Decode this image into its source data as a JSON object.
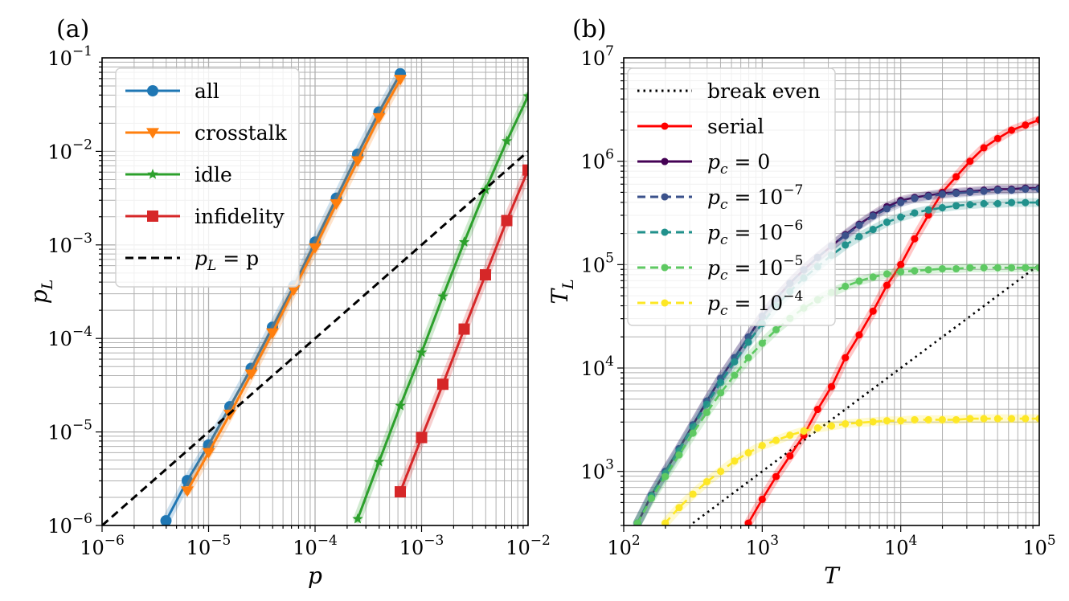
{
  "chart_data": [
    {
      "type": "line",
      "panel_label": "(a)",
      "xscale": "log",
      "yscale": "log",
      "xlim_exp": [
        -6,
        -2
      ],
      "ylim_exp": [
        -6,
        -1
      ],
      "xlabel": "p",
      "ylabel": "p",
      "ylabel_sub": "L",
      "x_tick_labels": [
        {
          "base": "10",
          "exp": "−6"
        },
        {
          "base": "10",
          "exp": "−5"
        },
        {
          "base": "10",
          "exp": "−4"
        },
        {
          "base": "10",
          "exp": "−3"
        },
        {
          "base": "10",
          "exp": "−2"
        }
      ],
      "y_tick_labels": [
        {
          "base": "10",
          "exp": "−6"
        },
        {
          "base": "10",
          "exp": "−5"
        },
        {
          "base": "10",
          "exp": "−4"
        },
        {
          "base": "10",
          "exp": "−3"
        },
        {
          "base": "10",
          "exp": "−2"
        },
        {
          "base": "10",
          "exp": "−1"
        }
      ],
      "grid": true,
      "legend_position": "top-left",
      "series": [
        {
          "name": "all",
          "color": "#1f77b4",
          "marker": "circle",
          "x_exp": [
            -5.4,
            -5.2,
            -5.0,
            -4.8,
            -4.6,
            -4.4,
            -4.2,
            -4.0,
            -3.8,
            -3.6,
            -3.4,
            -3.2
          ],
          "y_exp": [
            -5.95,
            -5.52,
            -5.14,
            -4.73,
            -4.32,
            -3.88,
            -3.44,
            -2.97,
            -2.5,
            -2.03,
            -1.58,
            -1.17
          ]
        },
        {
          "name": "crosstalk",
          "color": "#ff7f0e",
          "marker": "triangle-down",
          "x_exp": [
            -5.2,
            -5.0,
            -4.8,
            -4.6,
            -4.4,
            -4.2,
            -4.0,
            -3.8,
            -3.6,
            -3.4,
            -3.2
          ],
          "y_exp": [
            -5.63,
            -5.22,
            -4.81,
            -4.38,
            -3.94,
            -3.48,
            -3.03,
            -2.56,
            -2.1,
            -1.64,
            -1.23
          ]
        },
        {
          "name": "idle",
          "color": "#2ca02c",
          "marker": "star",
          "x_exp": [
            -3.6,
            -3.4,
            -3.2,
            -3.0,
            -2.8,
            -2.6,
            -2.4,
            -2.2,
            -2.0
          ],
          "y_exp": [
            -5.93,
            -5.32,
            -4.72,
            -4.15,
            -3.55,
            -2.97,
            -2.41,
            -1.89,
            -1.41
          ]
        },
        {
          "name": "infidelity",
          "color": "#d62728",
          "marker": "square",
          "x_exp": [
            -3.2,
            -3.0,
            -2.8,
            -2.6,
            -2.4,
            -2.2,
            -2.0
          ],
          "y_exp": [
            -5.64,
            -5.06,
            -4.49,
            -3.9,
            -3.32,
            -2.74,
            -2.2
          ]
        },
        {
          "name": "p_L = p",
          "color": "#000000",
          "dash": "dashed",
          "x_exp": [
            -6,
            -2
          ],
          "y_exp": [
            -6,
            -2
          ]
        }
      ],
      "legend": [
        {
          "text": "all"
        },
        {
          "text": "crosstalk"
        },
        {
          "text": "idle"
        },
        {
          "text": "infidelity"
        },
        {
          "lhs": "p",
          "lhs_sub": "L",
          "rhs": " = p"
        }
      ]
    },
    {
      "type": "line",
      "panel_label": "(b)",
      "xscale": "log",
      "yscale": "log",
      "xlim_exp": [
        2,
        5
      ],
      "ylim_exp": [
        2.477,
        7
      ],
      "xlabel": "T",
      "ylabel": "T",
      "ylabel_sub": "L",
      "x_tick_labels": [
        {
          "base": "10",
          "exp": "2"
        },
        {
          "base": "10",
          "exp": "3"
        },
        {
          "base": "10",
          "exp": "4"
        },
        {
          "base": "10",
          "exp": "5"
        }
      ],
      "y_tick_labels": [
        {
          "base": "10",
          "exp": "3"
        },
        {
          "base": "10",
          "exp": "4"
        },
        {
          "base": "10",
          "exp": "5"
        },
        {
          "base": "10",
          "exp": "6"
        },
        {
          "base": "10",
          "exp": "7"
        }
      ],
      "grid": true,
      "legend_position": "top-left",
      "series": [
        {
          "name": "break even",
          "color": "#000000",
          "dash": "dotted",
          "x_exp": [
            2.5,
            5.0
          ],
          "y_exp": [
            2.5,
            5.0
          ]
        },
        {
          "name": "serial",
          "color": "#ff0000",
          "marker": "circle",
          "x_exp": [
            2.9,
            3.0,
            3.1,
            3.2,
            3.3,
            3.4,
            3.5,
            3.6,
            3.7,
            3.8,
            3.9,
            4.0,
            4.1,
            4.2,
            4.3,
            4.4,
            4.5,
            4.6,
            4.7,
            4.8,
            4.9,
            5.0
          ],
          "y_exp": [
            2.5,
            2.73,
            2.95,
            3.15,
            3.35,
            3.6,
            3.82,
            4.1,
            4.32,
            4.55,
            4.8,
            5.0,
            5.25,
            5.48,
            5.7,
            5.85,
            6.0,
            6.13,
            6.22,
            6.3,
            6.35,
            6.4
          ]
        },
        {
          "name": "p_c = 0",
          "color": "#440154",
          "marker": "circle",
          "x_exp": [
            2.1,
            2.2,
            2.3,
            2.4,
            2.5,
            2.6,
            2.7,
            2.8,
            2.9,
            3.0,
            3.1,
            3.2,
            3.3,
            3.4,
            3.5,
            3.6,
            3.7,
            3.8,
            3.9,
            4.0,
            4.1,
            4.2,
            4.3,
            4.4,
            4.5,
            4.6,
            4.7,
            4.8,
            4.9,
            5.0
          ],
          "y_exp": [
            2.5,
            2.77,
            3.0,
            3.22,
            3.45,
            3.68,
            3.9,
            4.1,
            4.3,
            4.5,
            4.67,
            4.82,
            4.95,
            5.07,
            5.18,
            5.29,
            5.39,
            5.48,
            5.56,
            5.62,
            5.65,
            5.67,
            5.69,
            5.7,
            5.71,
            5.72,
            5.73,
            5.73,
            5.74,
            5.74
          ]
        },
        {
          "name": "p_c = 10^-7",
          "color": "#3b528b",
          "marker": "circle",
          "dash": "dashed",
          "x_exp": [
            2.1,
            2.2,
            2.3,
            2.4,
            2.5,
            2.6,
            2.7,
            2.8,
            2.9,
            3.0,
            3.1,
            3.2,
            3.3,
            3.4,
            3.5,
            3.6,
            3.7,
            3.8,
            3.9,
            4.0,
            4.1,
            4.2,
            4.3,
            4.4,
            4.5,
            4.6,
            4.7,
            4.8,
            4.9,
            5.0
          ],
          "y_exp": [
            2.5,
            2.77,
            3.0,
            3.22,
            3.45,
            3.68,
            3.9,
            4.1,
            4.3,
            4.5,
            4.67,
            4.82,
            4.95,
            5.07,
            5.18,
            5.28,
            5.38,
            5.47,
            5.54,
            5.6,
            5.64,
            5.66,
            5.68,
            5.69,
            5.7,
            5.71,
            5.72,
            5.72,
            5.73,
            5.73
          ]
        },
        {
          "name": "p_c = 10^-6",
          "color": "#21918c",
          "marker": "circle",
          "dash": "dashed",
          "x_exp": [
            2.1,
            2.2,
            2.3,
            2.4,
            2.5,
            2.6,
            2.7,
            2.8,
            2.9,
            3.0,
            3.1,
            3.2,
            3.3,
            3.4,
            3.5,
            3.6,
            3.7,
            3.8,
            3.9,
            4.0,
            4.1,
            4.2,
            4.3,
            4.4,
            4.5,
            4.6,
            4.7,
            4.8,
            4.9,
            5.0
          ],
          "y_exp": [
            2.5,
            2.76,
            2.98,
            3.2,
            3.43,
            3.65,
            3.86,
            4.06,
            4.25,
            4.43,
            4.6,
            4.74,
            4.87,
            4.98,
            5.09,
            5.19,
            5.27,
            5.34,
            5.41,
            5.46,
            5.5,
            5.53,
            5.55,
            5.57,
            5.58,
            5.59,
            5.59,
            5.6,
            5.6,
            5.6
          ]
        },
        {
          "name": "p_c = 10^-5",
          "color": "#5ec962",
          "marker": "circle",
          "dash": "dashed",
          "x_exp": [
            2.1,
            2.2,
            2.3,
            2.4,
            2.5,
            2.6,
            2.7,
            2.8,
            2.9,
            3.0,
            3.1,
            3.2,
            3.3,
            3.4,
            3.5,
            3.6,
            3.7,
            3.8,
            3.9,
            4.0,
            4.1,
            4.2,
            4.3,
            4.4,
            4.5,
            4.6,
            4.7,
            4.8,
            4.9,
            5.0
          ],
          "y_exp": [
            2.5,
            2.74,
            2.95,
            3.16,
            3.37,
            3.57,
            3.76,
            3.93,
            4.1,
            4.24,
            4.37,
            4.48,
            4.58,
            4.66,
            4.73,
            4.79,
            4.84,
            4.88,
            4.91,
            4.93,
            4.94,
            4.95,
            4.96,
            4.96,
            4.97,
            4.97,
            4.97,
            4.97,
            4.97,
            4.97
          ]
        },
        {
          "name": "p_c = 10^-4",
          "color": "#fde725",
          "marker": "circle",
          "dash": "dashed",
          "x_exp": [
            2.3,
            2.4,
            2.5,
            2.6,
            2.7,
            2.8,
            2.9,
            3.0,
            3.1,
            3.2,
            3.3,
            3.4,
            3.5,
            3.6,
            3.7,
            3.8,
            3.9,
            4.0,
            4.1,
            4.2,
            4.3,
            4.4,
            4.5,
            4.6,
            4.7,
            4.8,
            4.9,
            5.0
          ],
          "y_exp": [
            2.5,
            2.65,
            2.78,
            2.9,
            3.0,
            3.1,
            3.18,
            3.25,
            3.3,
            3.35,
            3.39,
            3.42,
            3.44,
            3.46,
            3.47,
            3.48,
            3.49,
            3.49,
            3.5,
            3.5,
            3.5,
            3.5,
            3.51,
            3.51,
            3.51,
            3.51,
            3.51,
            3.51
          ]
        }
      ],
      "legend": [
        {
          "text": "break even"
        },
        {
          "text": "serial"
        },
        {
          "lhs": "p",
          "lhs_sub": "c",
          "rhs": " = 0"
        },
        {
          "lhs": "p",
          "lhs_sub": "c",
          "rhs": " = 10",
          "rhs_sup": "−7"
        },
        {
          "lhs": "p",
          "lhs_sub": "c",
          "rhs": " = 10",
          "rhs_sup": "−6"
        },
        {
          "lhs": "p",
          "lhs_sub": "c",
          "rhs": " = 10",
          "rhs_sup": "−5"
        },
        {
          "lhs": "p",
          "lhs_sub": "c",
          "rhs": " = 10",
          "rhs_sup": "−4"
        }
      ]
    }
  ]
}
